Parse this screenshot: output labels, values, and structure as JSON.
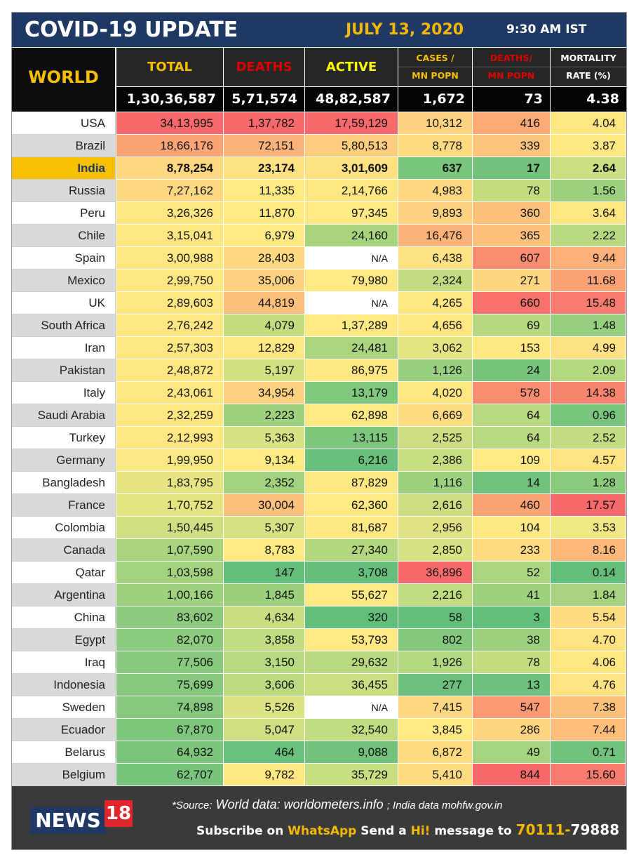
{
  "header": {
    "title": "COVID-19 UPDATE",
    "date": "JULY 13, 2020",
    "time": "9:30 AM IST"
  },
  "columns": {
    "region": "WORLD",
    "total": "TOTAL",
    "deaths": "DEATHS",
    "active": "ACTIVE",
    "cases_mn_l1": "CASES /",
    "cases_mn_l2": "MN POPN",
    "deaths_mn_l1": "DEATHS/",
    "deaths_mn_l2": "MN POPN",
    "mortality_l1": "MORTALITY",
    "mortality_l2": "RATE (%)"
  },
  "world": {
    "total": "1,30,36,587",
    "deaths": "5,71,574",
    "active": "48,82,587",
    "cases_mn": "1,672",
    "deaths_mn": "73",
    "mortality": "4.38"
  },
  "colors": {
    "header_blue": "#1f3864",
    "accent_yellow": "#f5c000",
    "deaths_red": "#e00000",
    "active_yellow": "#ffff00"
  },
  "rows": [
    {
      "country": "USA",
      "total": "34,13,995",
      "deaths": "1,37,782",
      "active": "17,59,129",
      "cases_mn": "10,312",
      "deaths_mn": "416",
      "mortality": "4.04",
      "c": [
        "#f8696b",
        "#f8696b",
        "#f8696b",
        "#fed280",
        "#fcab77",
        "#fee683"
      ]
    },
    {
      "country": "Brazil",
      "total": "18,66,176",
      "deaths": "72,151",
      "active": "5,80,513",
      "cases_mn": "8,778",
      "deaths_mn": "339",
      "mortality": "3.87",
      "c": [
        "#fba476",
        "#fcb379",
        "#fdcd7e",
        "#fedb81",
        "#fdc47d",
        "#ffe884"
      ]
    },
    {
      "country": "India",
      "total": "8,78,254",
      "deaths": "23,174",
      "active": "3,01,609",
      "cases_mn": "637",
      "deaths_mn": "17",
      "mortality": "2.64",
      "c": [
        "#fed880",
        "#fee182",
        "#fee282",
        "#7bc67d",
        "#72c27c",
        "#c9df81"
      ]
    },
    {
      "country": "Russia",
      "total": "7,27,162",
      "deaths": "11,335",
      "active": "2,14,766",
      "cases_mn": "4,983",
      "deaths_mn": "78",
      "mortality": "1.56",
      "c": [
        "#fed880",
        "#feea83",
        "#fee683",
        "#fed880",
        "#c3dc80",
        "#9bd17f"
      ]
    },
    {
      "country": "Peru",
      "total": "3,26,326",
      "deaths": "11,870",
      "active": "97,345",
      "cases_mn": "9,893",
      "deaths_mn": "360",
      "mortality": "3.64",
      "c": [
        "#fee683",
        "#feea83",
        "#fee984",
        "#fed280",
        "#fdc17c",
        "#fee683"
      ]
    },
    {
      "country": "Chile",
      "total": "3,15,041",
      "deaths": "6,979",
      "active": "24,160",
      "cases_mn": "16,476",
      "deaths_mn": "365",
      "mortality": "2.22",
      "c": [
        "#fee683",
        "#feea83",
        "#a9d47f",
        "#fcb379",
        "#fdc17c",
        "#b9d981"
      ]
    },
    {
      "country": "Spain",
      "total": "3,00,988",
      "deaths": "28,403",
      "active": "N/A",
      "cases_mn": "6,438",
      "deaths_mn": "607",
      "mortality": "9.44",
      "c": [
        "#fee683",
        "#fed981",
        "#ffffff",
        "#fee182",
        "#f98d72",
        "#fcb079"
      ]
    },
    {
      "country": "Mexico",
      "total": "2,99,750",
      "deaths": "35,006",
      "active": "79,980",
      "cases_mn": "2,324",
      "deaths_mn": "271",
      "mortality": "11.68",
      "c": [
        "#fee683",
        "#fdd17f",
        "#feea84",
        "#c4dc81",
        "#fed680",
        "#fba276"
      ]
    },
    {
      "country": "UK",
      "total": "2,89,603",
      "deaths": "44,819",
      "active": "N/A",
      "cases_mn": "4,265",
      "deaths_mn": "660",
      "mortality": "15.48",
      "c": [
        "#fee683",
        "#fcbf7b",
        "#ffffff",
        "#fee683",
        "#f8716d",
        "#f97c6f"
      ]
    },
    {
      "country": "South Africa",
      "total": "2,76,242",
      "deaths": "4,079",
      "active": "1,37,289",
      "cases_mn": "4,656",
      "deaths_mn": "69",
      "mortality": "1.48",
      "c": [
        "#fee683",
        "#c4dc80",
        "#feea83",
        "#fee683",
        "#b7d880",
        "#96cf7f"
      ]
    },
    {
      "country": "Iran",
      "total": "2,57,303",
      "deaths": "12,829",
      "active": "24,481",
      "cases_mn": "3,062",
      "deaths_mn": "153",
      "mortality": "4.99",
      "c": [
        "#fee683",
        "#fee783",
        "#aad480",
        "#e5e483",
        "#fee883",
        "#fee182"
      ]
    },
    {
      "country": "Pakistan",
      "total": "2,48,872",
      "deaths": "5,197",
      "active": "86,975",
      "cases_mn": "1,126",
      "deaths_mn": "24",
      "mortality": "2.09",
      "c": [
        "#fee683",
        "#d3e082",
        "#fee883",
        "#98d07f",
        "#78c47d",
        "#b3d880"
      ]
    },
    {
      "country": "Italy",
      "total": "2,43,061",
      "deaths": "34,954",
      "active": "13,179",
      "cases_mn": "4,020",
      "deaths_mn": "578",
      "mortality": "14.38",
      "c": [
        "#fee683",
        "#fdd17f",
        "#80c87d",
        "#fee783",
        "#f98d72",
        "#f8836f"
      ]
    },
    {
      "country": "Saudi Arabia",
      "total": "2,32,259",
      "deaths": "2,223",
      "active": "62,898",
      "cases_mn": "6,669",
      "deaths_mn": "64",
      "mortality": "0.96",
      "c": [
        "#fee683",
        "#9fd17f",
        "#fee984",
        "#fedc81",
        "#b9d981",
        "#7ac57d"
      ]
    },
    {
      "country": "Turkey",
      "total": "2,12,993",
      "deaths": "5,363",
      "active": "13,115",
      "cases_mn": "2,525",
      "deaths_mn": "64",
      "mortality": "2.52",
      "c": [
        "#fee683",
        "#d9e282",
        "#7fc77d",
        "#ccde81",
        "#b9d981",
        "#c4dc81"
      ]
    },
    {
      "country": "Germany",
      "total": "1,99,950",
      "deaths": "9,134",
      "active": "6,216",
      "cases_mn": "2,386",
      "deaths_mn": "109",
      "mortality": "4.57",
      "c": [
        "#f9e984",
        "#feea83",
        "#6abf7b",
        "#c6dd81",
        "#fee984",
        "#fee382"
      ]
    },
    {
      "country": "Bangladesh",
      "total": "1,83,795",
      "deaths": "2,352",
      "active": "87,829",
      "cases_mn": "1,116",
      "deaths_mn": "14",
      "mortality": "1.28",
      "c": [
        "#e7e583",
        "#a3d27f",
        "#fee883",
        "#9bd17f",
        "#6fc17c",
        "#8ccb7e"
      ]
    },
    {
      "country": "France",
      "total": "1,70,752",
      "deaths": "30,004",
      "active": "62,360",
      "cases_mn": "2,616",
      "deaths_mn": "460",
      "mortality": "17.57",
      "c": [
        "#e4e483",
        "#fcc17c",
        "#fee984",
        "#ccde81",
        "#faa375",
        "#f8696b"
      ]
    },
    {
      "country": "Colombia",
      "total": "1,50,445",
      "deaths": "5,307",
      "active": "81,687",
      "cases_mn": "2,956",
      "deaths_mn": "104",
      "mortality": "3.53",
      "c": [
        "#cfe082",
        "#d7e182",
        "#fee883",
        "#dfe383",
        "#fde983",
        "#f1e783"
      ]
    },
    {
      "country": "Canada",
      "total": "1,07,590",
      "deaths": "8,783",
      "active": "27,340",
      "cases_mn": "2,850",
      "deaths_mn": "233",
      "mortality": "8.16",
      "c": [
        "#a8d47f",
        "#feea83",
        "#b2d780",
        "#d9e282",
        "#fedb81",
        "#fdb87a"
      ]
    },
    {
      "country": "Qatar",
      "total": "1,03,598",
      "deaths": "147",
      "active": "3,708",
      "cases_mn": "36,896",
      "deaths_mn": "52",
      "mortality": "0.14",
      "c": [
        "#a3d27f",
        "#63be7b",
        "#65be7b",
        "#f8696b",
        "#aad480",
        "#63be7b"
      ]
    },
    {
      "country": "Argentina",
      "total": "1,00,166",
      "deaths": "1,845",
      "active": "55,627",
      "cases_mn": "2,216",
      "deaths_mn": "41",
      "mortality": "1.84",
      "c": [
        "#a0d17f",
        "#9bd07f",
        "#fee984",
        "#c1db81",
        "#9fd17f",
        "#a7d380"
      ]
    },
    {
      "country": "China",
      "total": "83,602",
      "deaths": "4,634",
      "active": "320",
      "cases_mn": "58",
      "deaths_mn": "3",
      "mortality": "5.54",
      "c": [
        "#8ecb7e",
        "#cbdd81",
        "#63be7b",
        "#63be7b",
        "#63be7b",
        "#fedc81"
      ]
    },
    {
      "country": "Egypt",
      "total": "82,070",
      "deaths": "3,858",
      "active": "53,793",
      "cases_mn": "802",
      "deaths_mn": "38",
      "mortality": "4.70",
      "c": [
        "#8dcb7e",
        "#c2dc81",
        "#fee984",
        "#83c87d",
        "#9cd17f",
        "#fee382"
      ]
    },
    {
      "country": "Iraq",
      "total": "77,506",
      "deaths": "3,150",
      "active": "29,632",
      "cases_mn": "1,926",
      "deaths_mn": "78",
      "mortality": "4.06",
      "c": [
        "#88c97e",
        "#b7d980",
        "#b9d981",
        "#b3d880",
        "#c3dc80",
        "#fee683"
      ]
    },
    {
      "country": "Indonesia",
      "total": "75,699",
      "deaths": "3,606",
      "active": "36,455",
      "cases_mn": "277",
      "deaths_mn": "13",
      "mortality": "4.76",
      "c": [
        "#86c97e",
        "#bdda80",
        "#cadf82",
        "#6cc07c",
        "#6ec17c",
        "#fee382"
      ]
    },
    {
      "country": "Sweden",
      "total": "74,898",
      "deaths": "5,526",
      "active": "N/A",
      "cases_mn": "7,415",
      "deaths_mn": "547",
      "mortality": "7.38",
      "c": [
        "#86c97e",
        "#dbe383",
        "#ffffff",
        "#fed880",
        "#f99a74",
        "#fdbf7c"
      ]
    },
    {
      "country": "Ecuador",
      "total": "67,870",
      "deaths": "5,047",
      "active": "32,540",
      "cases_mn": "3,845",
      "deaths_mn": "286",
      "mortality": "7.44",
      "c": [
        "#7fc67d",
        "#d0df82",
        "#c2dc81",
        "#fee983",
        "#fed480",
        "#fdbe7b"
      ]
    },
    {
      "country": "Belarus",
      "total": "64,932",
      "deaths": "464",
      "active": "9,088",
      "cases_mn": "6,872",
      "deaths_mn": "49",
      "mortality": "0.71",
      "c": [
        "#7bc57d",
        "#6ac07c",
        "#72c27c",
        "#fedb81",
        "#a6d37f",
        "#70c17c"
      ]
    },
    {
      "country": "Belgium",
      "total": "62,707",
      "deaths": "9,782",
      "active": "35,729",
      "cases_mn": "5,410",
      "deaths_mn": "844",
      "mortality": "15.60",
      "c": [
        "#79c47c",
        "#fee683",
        "#c7de81",
        "#feda81",
        "#f8696b",
        "#f97b6e"
      ]
    }
  ],
  "footer": {
    "logo_text": "NEWS",
    "logo_num": "18",
    "source_label": "*Source:",
    "source_world": "World data: worldometers.info",
    "source_india": "; India data mohfw.gov.in",
    "sub_1": "Subscribe on",
    "sub_whatsapp": "WhatsApp",
    "sub_2": "Send a",
    "sub_hi": "Hi!",
    "sub_3": "message to",
    "sub_num1": "70111-",
    "sub_num2": "79888"
  }
}
